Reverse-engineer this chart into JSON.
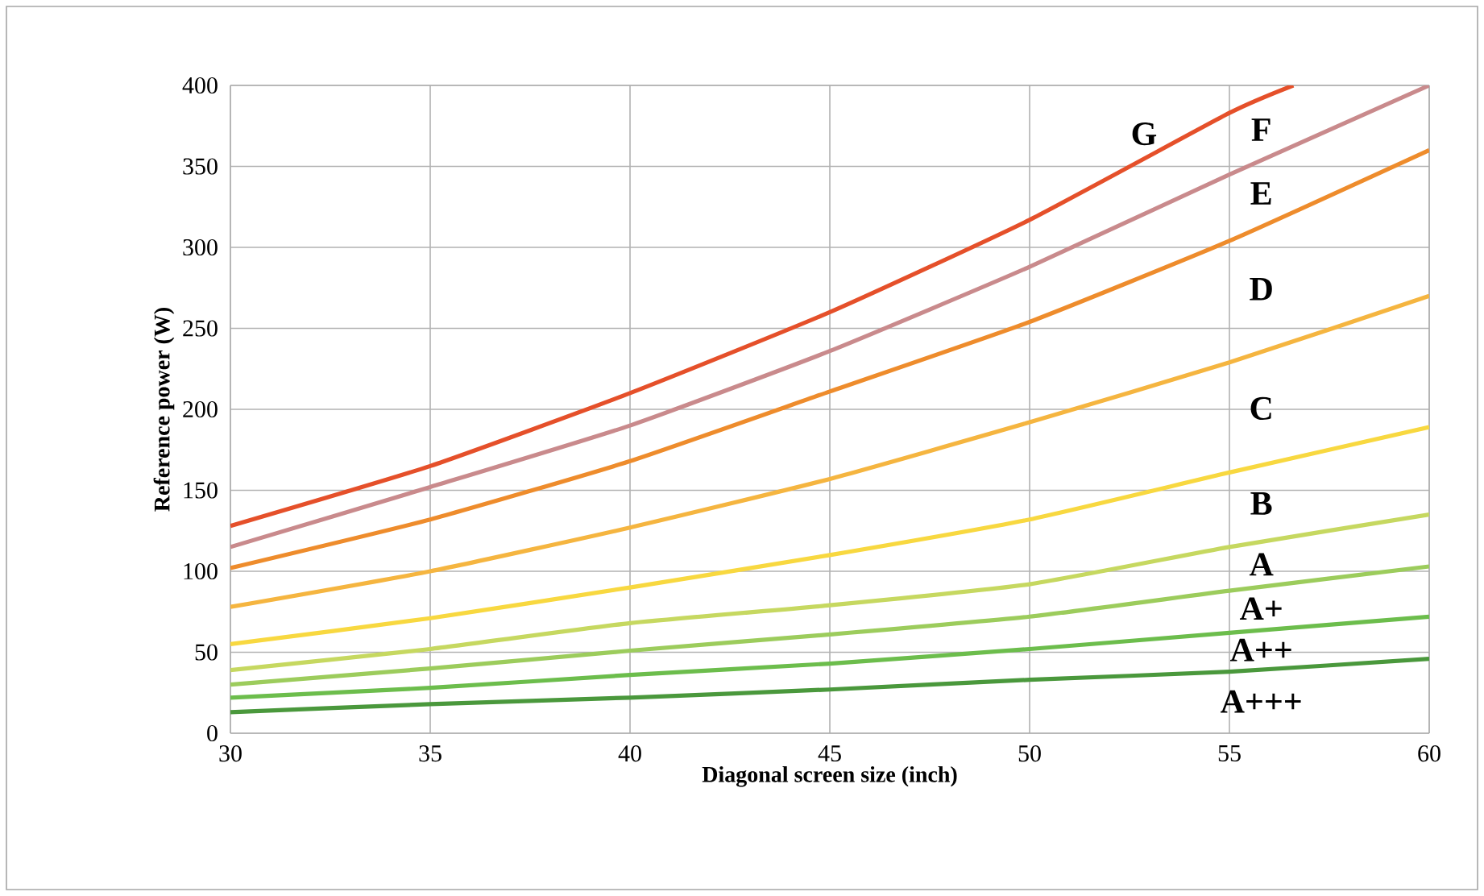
{
  "chart_data": {
    "type": "line",
    "xlabel": "Diagonal screen size (inch)",
    "ylabel": "Reference power (W)",
    "x": [
      30,
      35,
      40,
      45,
      50,
      55,
      60
    ],
    "xlim": [
      30,
      60
    ],
    "xticks": [
      30,
      35,
      40,
      45,
      50,
      55,
      60
    ],
    "ylim": [
      0,
      400
    ],
    "yticks": [
      0,
      50,
      100,
      150,
      200,
      250,
      300,
      350,
      400
    ],
    "grid": true,
    "series": [
      {
        "color": "#e5502a",
        "x": [
          30,
          35,
          40,
          45,
          50,
          55,
          56.6
        ],
        "values": [
          128,
          165,
          210,
          260,
          317,
          383,
          400
        ]
      },
      {
        "color": "#c98a8c",
        "values": [
          115,
          152,
          190,
          236,
          288,
          345,
          400
        ]
      },
      {
        "color": "#ee8c2c",
        "values": [
          102,
          132,
          168,
          211,
          254,
          304,
          360
        ]
      },
      {
        "color": "#f5b540",
        "values": [
          78,
          100,
          127,
          157,
          192,
          229,
          270
        ]
      },
      {
        "color": "#f8d840",
        "values": [
          55,
          71,
          90,
          110,
          132,
          161,
          189
        ]
      },
      {
        "color": "#c6d860",
        "values": [
          39,
          52,
          68,
          79,
          92,
          115,
          135
        ]
      },
      {
        "color": "#9ccc5c",
        "values": [
          30,
          40,
          51,
          61,
          72,
          88,
          103
        ]
      },
      {
        "color": "#6cbd4c",
        "values": [
          22,
          28,
          36,
          43,
          52,
          62,
          72
        ]
      },
      {
        "color": "#4a983c",
        "values": [
          13,
          18,
          22,
          27,
          33,
          38,
          46
        ]
      }
    ],
    "annotations": [
      "G",
      "F",
      "E",
      "D",
      "C",
      "B",
      "A",
      "A+",
      "A++",
      "A+++"
    ]
  }
}
